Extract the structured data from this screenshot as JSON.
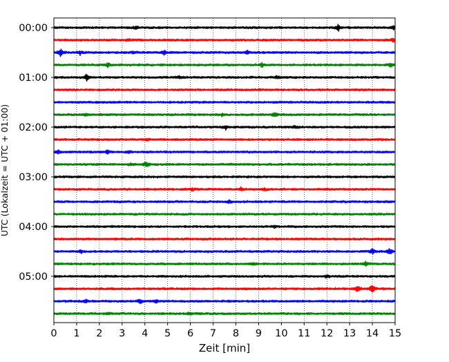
{
  "chart_data": {
    "type": "line",
    "subtype": "helicorder",
    "title": "",
    "xlabel": "Zeit  [min]",
    "ylabel": "UTC (Lokalzeit = UTC + 01:00)",
    "xlim": [
      0,
      15
    ],
    "x_ticks": [
      0,
      1,
      2,
      3,
      4,
      5,
      6,
      7,
      8,
      9,
      10,
      11,
      12,
      13,
      14,
      15
    ],
    "x_tick_labels": [
      "0",
      "1",
      "2",
      "3",
      "4",
      "5",
      "6",
      "7",
      "8",
      "9",
      "10",
      "11",
      "12",
      "13",
      "14",
      "15"
    ],
    "y_tick_labels": [
      "00:00",
      "01:00",
      "02:00",
      "03:00",
      "04:00",
      "05:00"
    ],
    "trace_interval_min": 15,
    "vertical_gridlines": "dotted",
    "colors": [
      "#000000",
      "#ff0000",
      "#0000ff",
      "#008000"
    ],
    "series": [
      {
        "start": "00:00",
        "color": "#000000",
        "events": [
          {
            "t": 12.5,
            "amp": 5
          },
          {
            "t": 3.6,
            "amp": 2
          },
          {
            "t": 14.95,
            "amp": 3
          }
        ]
      },
      {
        "start": "00:15",
        "color": "#ff0000",
        "events": [
          {
            "t": 3.3,
            "amp": 2
          },
          {
            "t": 14.9,
            "amp": 3
          }
        ]
      },
      {
        "start": "00:30",
        "color": "#0000ff",
        "events": [
          {
            "t": 0.3,
            "amp": 5
          },
          {
            "t": 1.15,
            "amp": 3
          },
          {
            "t": 3.5,
            "amp": 2
          },
          {
            "t": 4.85,
            "amp": 3
          },
          {
            "t": 8.5,
            "amp": 3
          }
        ]
      },
      {
        "start": "00:45",
        "color": "#008000",
        "events": [
          {
            "t": 2.35,
            "amp": 3
          },
          {
            "t": 9.15,
            "amp": 3
          },
          {
            "t": 14.8,
            "amp": 3
          }
        ]
      },
      {
        "start": "01:00",
        "color": "#000000",
        "events": [
          {
            "t": 1.45,
            "amp": 6
          },
          {
            "t": 5.5,
            "amp": 2
          },
          {
            "t": 9.8,
            "amp": 2
          }
        ]
      },
      {
        "start": "01:15",
        "color": "#ff0000",
        "events": []
      },
      {
        "start": "01:30",
        "color": "#0000ff",
        "events": []
      },
      {
        "start": "01:45",
        "color": "#008000",
        "events": [
          {
            "t": 1.4,
            "amp": 2
          },
          {
            "t": 7.4,
            "amp": 2
          },
          {
            "t": 9.7,
            "amp": 4
          }
        ]
      },
      {
        "start": "02:00",
        "color": "#000000",
        "events": [
          {
            "t": 7.55,
            "amp": 3
          },
          {
            "t": 10.6,
            "amp": 2
          }
        ]
      },
      {
        "start": "02:15",
        "color": "#ff0000",
        "events": [
          {
            "t": 4.1,
            "amp": 1
          }
        ]
      },
      {
        "start": "02:30",
        "color": "#0000ff",
        "events": [
          {
            "t": 0.2,
            "amp": 3
          },
          {
            "t": 2.35,
            "amp": 3
          },
          {
            "t": 3.3,
            "amp": 2
          }
        ]
      },
      {
        "start": "02:45",
        "color": "#008000",
        "events": [
          {
            "t": 3.4,
            "amp": 2
          },
          {
            "t": 4.05,
            "amp": 4
          }
        ]
      },
      {
        "start": "03:00",
        "color": "#000000",
        "events": []
      },
      {
        "start": "03:15",
        "color": "#ff0000",
        "events": [
          {
            "t": 6.1,
            "amp": 2
          },
          {
            "t": 8.25,
            "amp": 3
          },
          {
            "t": 9.25,
            "amp": 2
          }
        ]
      },
      {
        "start": "03:30",
        "color": "#0000ff",
        "events": [
          {
            "t": 7.7,
            "amp": 3
          }
        ]
      },
      {
        "start": "03:45",
        "color": "#008000",
        "events": []
      },
      {
        "start": "04:00",
        "color": "#000000",
        "events": [
          {
            "t": 9.7,
            "amp": 2
          }
        ]
      },
      {
        "start": "04:15",
        "color": "#ff0000",
        "events": []
      },
      {
        "start": "04:30",
        "color": "#0000ff",
        "events": [
          {
            "t": 1.2,
            "amp": 2
          },
          {
            "t": 14.0,
            "amp": 4
          },
          {
            "t": 14.75,
            "amp": 5
          }
        ]
      },
      {
        "start": "04:45",
        "color": "#008000",
        "events": [
          {
            "t": 8.75,
            "amp": 2
          },
          {
            "t": 13.7,
            "amp": 3
          }
        ]
      },
      {
        "start": "05:00",
        "color": "#000000",
        "events": [
          {
            "t": 12.0,
            "amp": 2
          }
        ]
      },
      {
        "start": "05:15",
        "color": "#ff0000",
        "events": [
          {
            "t": 13.35,
            "amp": 5
          },
          {
            "t": 14.0,
            "amp": 7
          }
        ]
      },
      {
        "start": "05:30",
        "color": "#0000ff",
        "events": [
          {
            "t": 1.4,
            "amp": 2
          },
          {
            "t": 3.8,
            "amp": 3
          },
          {
            "t": 4.5,
            "amp": 2
          }
        ]
      },
      {
        "start": "05:45",
        "color": "#008000",
        "events": [
          {
            "t": 2.4,
            "amp": 2
          },
          {
            "t": 6.0,
            "amp": 2
          }
        ]
      }
    ]
  }
}
